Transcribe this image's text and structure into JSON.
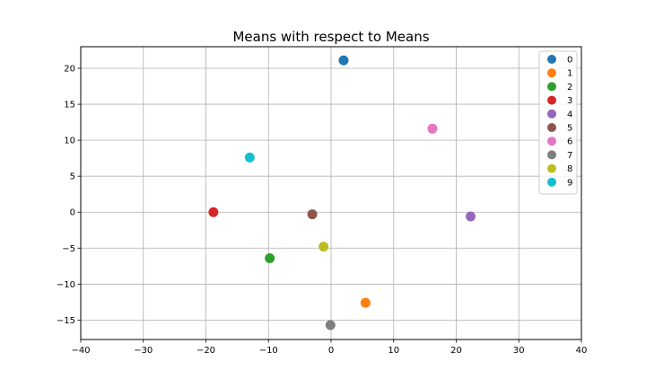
{
  "chart_data": {
    "type": "scatter",
    "title": "Means with respect to Means",
    "xlabel": "",
    "ylabel": "",
    "xlim": [
      -40,
      40
    ],
    "ylim": [
      -17.7,
      23
    ],
    "xticks": [
      -40,
      -30,
      -20,
      -10,
      0,
      10,
      20,
      30,
      40
    ],
    "yticks": [
      -15,
      -10,
      -5,
      0,
      5,
      10,
      15,
      20
    ],
    "grid": true,
    "legend_position": "top-right",
    "series": [
      {
        "name": "0",
        "color": "#1f77b4",
        "x": [
          2.0
        ],
        "y": [
          21.1
        ]
      },
      {
        "name": "1",
        "color": "#ff7f0e",
        "x": [
          5.5
        ],
        "y": [
          -12.6
        ]
      },
      {
        "name": "2",
        "color": "#2ca02c",
        "x": [
          -9.8
        ],
        "y": [
          -6.4
        ]
      },
      {
        "name": "3",
        "color": "#d62728",
        "x": [
          -18.8
        ],
        "y": [
          0.0
        ]
      },
      {
        "name": "4",
        "color": "#9467bd",
        "x": [
          22.3
        ],
        "y": [
          -0.6
        ]
      },
      {
        "name": "5",
        "color": "#8c564b",
        "x": [
          -3.0
        ],
        "y": [
          -0.3
        ]
      },
      {
        "name": "6",
        "color": "#e377c2",
        "x": [
          16.2
        ],
        "y": [
          11.6
        ]
      },
      {
        "name": "7",
        "color": "#7f7f7f",
        "x": [
          -0.1
        ],
        "y": [
          -15.7
        ]
      },
      {
        "name": "8",
        "color": "#bcbd22",
        "x": [
          -1.2
        ],
        "y": [
          -4.8
        ]
      },
      {
        "name": "9",
        "color": "#17becf",
        "x": [
          -13.0
        ],
        "y": [
          7.6
        ]
      }
    ]
  }
}
